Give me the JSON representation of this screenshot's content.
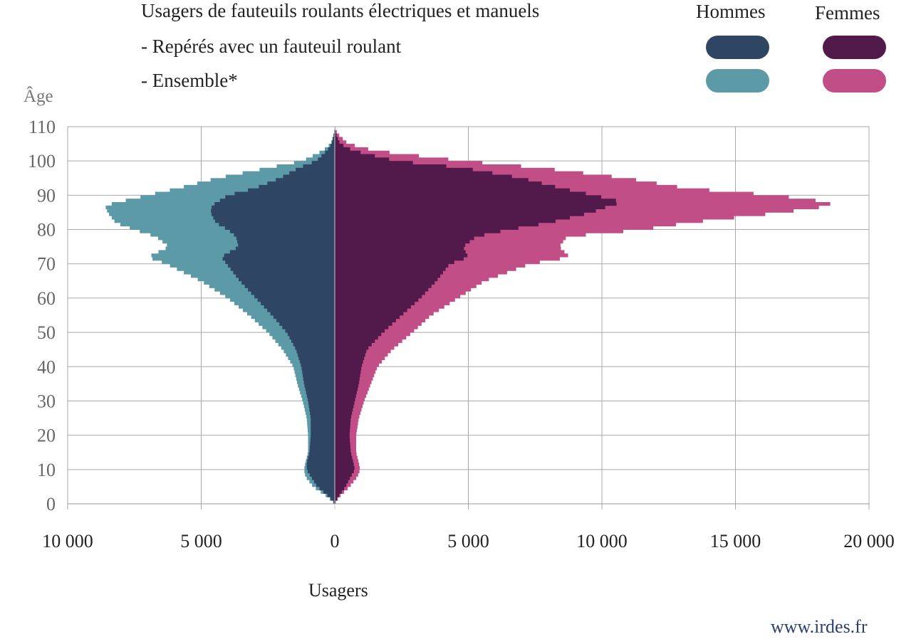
{
  "title_lines": [
    "Usagers de fauteuils roulants électriques et manuels",
    "- Repérés avec un fauteuil roulant",
    "- Ensemble*"
  ],
  "legend": {
    "hommes_label": "Hommes",
    "femmes_label": "Femmes"
  },
  "colors": {
    "hommes_reperes": "#2e4664",
    "hommes_ensemble": "#5b9aa6",
    "femmes_reperes": "#521a4b",
    "femmes_ensemble": "#c24e87",
    "grid": "#a9a9a9"
  },
  "source": "www.irdes.fr",
  "chart_data": {
    "type": "bar",
    "orientation": "horizontal",
    "population_pyramid": true,
    "ylabel": "Âge",
    "xlabel": "Usagers",
    "y_ticks": [
      "0",
      "10",
      "20",
      "30",
      "40",
      "50",
      "60",
      "70",
      "80",
      "90",
      "100",
      "110"
    ],
    "y_tick_values": [
      0,
      10,
      20,
      30,
      40,
      50,
      60,
      70,
      80,
      90,
      100,
      110
    ],
    "x_ticks": [
      "10 000",
      "5 000",
      "0",
      "5 000",
      "10 000",
      "15 000",
      "20 000"
    ],
    "x_tick_values": [
      -10000,
      -5000,
      0,
      5000,
      10000,
      15000,
      20000
    ],
    "xlim": [
      -10000,
      20000
    ],
    "ylim": [
      0,
      110
    ],
    "grid": true,
    "age_anchors": [
      0,
      2,
      5,
      8,
      10,
      12,
      15,
      20,
      25,
      30,
      35,
      40,
      45,
      50,
      55,
      60,
      65,
      70,
      72,
      75,
      78,
      80,
      82,
      85,
      87,
      88,
      90,
      92,
      95,
      98,
      100,
      103,
      105,
      108,
      110
    ],
    "series": [
      {
        "name": "Hommes - Repérés avec un fauteuil roulant",
        "values": [
          0,
          200,
          650,
          900,
          1050,
          1050,
          950,
          900,
          900,
          1000,
          1150,
          1250,
          1450,
          1800,
          2350,
          2950,
          3550,
          4050,
          4250,
          3600,
          3700,
          4000,
          4450,
          4650,
          4600,
          4400,
          4000,
          3000,
          2050,
          1350,
          700,
          300,
          120,
          30,
          0
        ]
      },
      {
        "name": "Hommes - Ensemble*",
        "values": [
          0,
          250,
          800,
          1100,
          1150,
          1100,
          1000,
          1000,
          1050,
          1200,
          1400,
          1550,
          1950,
          2500,
          3200,
          4000,
          5000,
          6300,
          7000,
          6200,
          6700,
          7500,
          8200,
          8500,
          8600,
          8100,
          7000,
          5900,
          4400,
          2500,
          1200,
          450,
          150,
          30,
          0
        ]
      },
      {
        "name": "Femmes - Repérés avec un fauteuil roulant",
        "values": [
          0,
          120,
          400,
          600,
          750,
          700,
          600,
          550,
          600,
          750,
          900,
          1000,
          1200,
          1800,
          2500,
          3200,
          3800,
          4300,
          5000,
          4800,
          5300,
          6500,
          8000,
          9600,
          10300,
          10800,
          9700,
          8500,
          7000,
          4800,
          2300,
          700,
          200,
          40,
          0
        ]
      },
      {
        "name": "Femmes - Ensemble*",
        "values": [
          0,
          150,
          550,
          850,
          950,
          900,
          800,
          800,
          900,
          1100,
          1350,
          1600,
          2150,
          2900,
          3600,
          4600,
          5600,
          7300,
          8800,
          8400,
          8700,
          11500,
          13200,
          16700,
          18600,
          18500,
          16500,
          13200,
          10900,
          7700,
          4800,
          1500,
          500,
          100,
          0
        ]
      }
    ]
  }
}
